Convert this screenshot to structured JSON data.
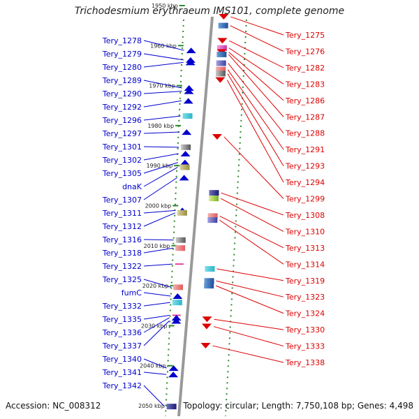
{
  "title": "Trichodesmium erythraeum IMS101, complete genome",
  "footer": {
    "accession": "Accession: NC_008312",
    "topology": "Topology: circular; Length: 7,750,108 bp; Genes: 4,498"
  },
  "kbp_marks": [
    {
      "label": "1950 kbp",
      "pos": 1950
    },
    {
      "label": "1960 kbp",
      "pos": 1960
    },
    {
      "label": "1970 kbp",
      "pos": 1970
    },
    {
      "label": "1980 kbp",
      "pos": 1980
    },
    {
      "label": "1990 kbp",
      "pos": 1990
    },
    {
      "label": "2000 kbp",
      "pos": 2000
    },
    {
      "label": "2010 kbp",
      "pos": 2010
    },
    {
      "label": "2020 kbp",
      "pos": 2020
    },
    {
      "label": "2030 kbp",
      "pos": 2030
    },
    {
      "label": "2040 kbp",
      "pos": 2040
    },
    {
      "label": "2050 kbp",
      "pos": 2050
    }
  ],
  "colors": {
    "forward": "#0000cc",
    "reverse": "#dd0000",
    "backbone": "#999999",
    "tick": "#2a8a2a"
  },
  "left_genes": [
    {
      "name": "Tery_1278",
      "target_kbp": 1961.2,
      "shape": "arrow_up"
    },
    {
      "name": "Tery_1279",
      "target_kbp": 1963.6,
      "shape": "arrow_up"
    },
    {
      "name": "Tery_1280",
      "target_kbp": 1964.2,
      "shape": "arrow_up"
    },
    {
      "name": "Tery_1289",
      "target_kbp": 1970.6,
      "shape": "arrow_up"
    },
    {
      "name": "Tery_1290",
      "target_kbp": 1971.4,
      "shape": "arrow_up"
    },
    {
      "name": "Tery_1292",
      "target_kbp": 1973.8,
      "shape": "arrow_up"
    },
    {
      "name": "Tery_1296",
      "target_kbp": 1977.6,
      "shape": "block_cyan"
    },
    {
      "name": "Tery_1297",
      "target_kbp": 1981.6,
      "shape": "arrow_up"
    },
    {
      "name": "Tery_1301",
      "target_kbp": 1985.4,
      "shape": "block_gray"
    },
    {
      "name": "Tery_1302",
      "target_kbp": 1987.0,
      "shape": "arrow_up"
    },
    {
      "name": "Tery_1305",
      "target_kbp": 1989.2,
      "shape": "arrow_up"
    },
    {
      "name": "dnaK",
      "target_kbp": 1990.4,
      "shape": "block_olive"
    },
    {
      "name": "Tery_1307",
      "target_kbp": 1993.0,
      "shape": "arrow_up"
    },
    {
      "name": "Tery_1311",
      "target_kbp": 2001.2,
      "shape": "arrow_up"
    },
    {
      "name": "Tery_1312",
      "target_kbp": 2001.8,
      "shape": "block_olive"
    },
    {
      "name": "Tery_1316",
      "target_kbp": 2008.6,
      "shape": "block_gray"
    },
    {
      "name": "Tery_1318",
      "target_kbp": 2010.6,
      "shape": "block_pink"
    },
    {
      "name": "Tery_1322",
      "target_kbp": 2014.6,
      "shape": "line_pink"
    },
    {
      "name": "Tery_1325",
      "target_kbp": 2020.4,
      "shape": "block_pink"
    },
    {
      "name": "fumC",
      "target_kbp": 2022.6,
      "shape": "arrow_up"
    },
    {
      "name": "Tery_1332",
      "target_kbp": 2024.2,
      "shape": "block_cyan"
    },
    {
      "name": "Tery_1335",
      "target_kbp": 2027.4,
      "shape": "line_pink"
    },
    {
      "name": "Tery_1336",
      "target_kbp": 2028.0,
      "shape": "arrow_up"
    },
    {
      "name": "Tery_1337",
      "target_kbp": 2028.8,
      "shape": "arrow_up"
    },
    {
      "name": "Tery_1340",
      "target_kbp": 2040.6,
      "shape": "arrow_up"
    },
    {
      "name": "Tery_1341",
      "target_kbp": 2042.2,
      "shape": "arrow_up"
    },
    {
      "name": "Tery_1342",
      "target_kbp": 2050.2,
      "shape": "block_navy"
    }
  ],
  "right_genes": [
    {
      "name": "Tery_1275",
      "target_kbp": 1952.8,
      "shape": "arrow_down"
    },
    {
      "name": "Tery_1276",
      "target_kbp": 1955.0,
      "shape": "block_blue"
    },
    {
      "name": "Tery_1282",
      "target_kbp": 1958.8,
      "shape": "arrow_down"
    },
    {
      "name": "Tery_1283",
      "target_kbp": 1960.6,
      "shape": "block_magenta"
    },
    {
      "name": "Tery_1286",
      "target_kbp": 1961.6,
      "shape": "arrow_down"
    },
    {
      "name": "Tery_1287",
      "target_kbp": 1962.2,
      "shape": "block_blue"
    },
    {
      "name": "Tery_1288",
      "target_kbp": 1964.4,
      "shape": "block_purple"
    },
    {
      "name": "Tery_1291",
      "target_kbp": 1966.0,
      "shape": "block_pink"
    },
    {
      "name": "Tery_1293",
      "target_kbp": 1967.0,
      "shape": "block_gray"
    },
    {
      "name": "Tery_1294",
      "target_kbp": 1968.6,
      "shape": "arrow_down"
    },
    {
      "name": "Tery_1299",
      "target_kbp": 1982.8,
      "shape": "arrow_down"
    },
    {
      "name": "Tery_1308",
      "target_kbp": 1996.8,
      "shape": "block_navy"
    },
    {
      "name": "Tery_1310",
      "target_kbp": 1998.2,
      "shape": "block_green"
    },
    {
      "name": "Tery_1313",
      "target_kbp": 2002.6,
      "shape": "block_pink"
    },
    {
      "name": "Tery_1314",
      "target_kbp": 2003.6,
      "shape": "block_purple"
    },
    {
      "name": "Tery_1319",
      "target_kbp": 2015.8,
      "shape": "block_cyan"
    },
    {
      "name": "Tery_1323",
      "target_kbp": 2018.8,
      "shape": "block_blue"
    },
    {
      "name": "Tery_1324",
      "target_kbp": 2020.0,
      "shape": "block_blue"
    },
    {
      "name": "Tery_1330",
      "target_kbp": 2028.4,
      "shape": "arrow_down"
    },
    {
      "name": "Tery_1333",
      "target_kbp": 2030.2,
      "shape": "arrow_down"
    },
    {
      "name": "Tery_1338",
      "target_kbp": 2035.0,
      "shape": "arrow_down"
    }
  ]
}
